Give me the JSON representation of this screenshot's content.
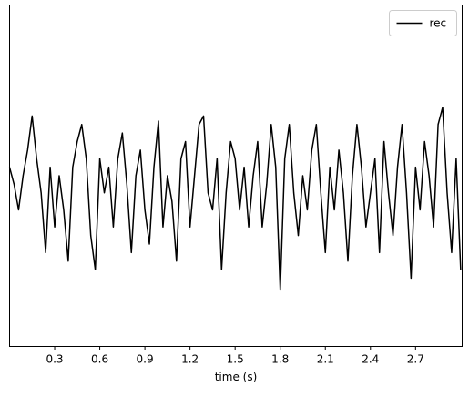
{
  "chart_data": {
    "type": "line",
    "xlabel": "time (s)",
    "x": [
      0,
      0.03,
      0.06,
      0.09,
      0.12,
      0.15,
      0.18,
      0.21,
      0.24,
      0.27,
      0.3,
      0.33,
      0.36,
      0.39,
      0.42,
      0.45,
      0.48,
      0.51,
      0.54,
      0.57,
      0.6,
      0.63,
      0.66,
      0.69,
      0.72,
      0.75,
      0.78,
      0.81,
      0.84,
      0.87,
      0.9,
      0.93,
      0.96,
      0.99,
      1.02,
      1.05,
      1.08,
      1.11,
      1.14,
      1.17,
      1.2,
      1.23,
      1.26,
      1.29,
      1.32,
      1.35,
      1.38,
      1.41,
      1.44,
      1.47,
      1.5,
      1.53,
      1.56,
      1.59,
      1.62,
      1.65,
      1.68,
      1.71,
      1.74,
      1.77,
      1.8,
      1.83,
      1.86,
      1.89,
      1.92,
      1.95,
      1.98,
      2.01,
      2.04,
      2.07,
      2.1,
      2.13,
      2.16,
      2.19,
      2.22,
      2.25,
      2.28,
      2.31,
      2.34,
      2.37,
      2.4,
      2.43,
      2.46,
      2.49,
      2.52,
      2.55,
      2.58,
      2.61,
      2.64,
      2.67,
      2.7,
      2.73,
      2.76,
      2.79,
      2.82,
      2.85,
      2.88,
      2.91,
      2.94,
      2.97,
      3.0
    ],
    "series": [
      {
        "name": "rec",
        "color": "#000000",
        "values": [
          0.05,
          -0.05,
          -0.2,
          0.0,
          0.15,
          0.35,
          0.1,
          -0.1,
          -0.45,
          0.05,
          -0.3,
          0.0,
          -0.2,
          -0.5,
          0.05,
          0.2,
          0.3,
          0.1,
          -0.35,
          -0.55,
          0.1,
          -0.1,
          0.05,
          -0.3,
          0.1,
          0.25,
          -0.05,
          -0.45,
          0.0,
          0.15,
          -0.2,
          -0.4,
          0.05,
          0.32,
          -0.3,
          0.0,
          -0.15,
          -0.5,
          0.1,
          0.2,
          -0.3,
          0.0,
          0.3,
          0.35,
          -0.1,
          -0.2,
          0.1,
          -0.55,
          -0.1,
          0.2,
          0.1,
          -0.2,
          0.05,
          -0.3,
          0.0,
          0.2,
          -0.3,
          -0.05,
          0.3,
          0.05,
          -0.67,
          0.1,
          0.3,
          -0.1,
          -0.35,
          0.0,
          -0.2,
          0.15,
          0.3,
          -0.1,
          -0.45,
          0.05,
          -0.2,
          0.15,
          -0.1,
          -0.5,
          0.0,
          0.3,
          0.05,
          -0.3,
          -0.1,
          0.1,
          -0.45,
          0.2,
          -0.1,
          -0.35,
          0.05,
          0.3,
          -0.1,
          -0.6,
          0.05,
          -0.2,
          0.2,
          0.0,
          -0.3,
          0.3,
          0.4,
          -0.1,
          -0.45,
          0.1,
          -0.55
        ]
      }
    ],
    "xlim": [
      0,
      3.01
    ],
    "ylim": [
      -1,
      1
    ],
    "xticks": [
      0.3,
      0.6,
      0.9,
      1.2,
      1.5,
      1.8,
      2.1,
      2.4,
      2.7
    ],
    "legend": "upper right"
  }
}
